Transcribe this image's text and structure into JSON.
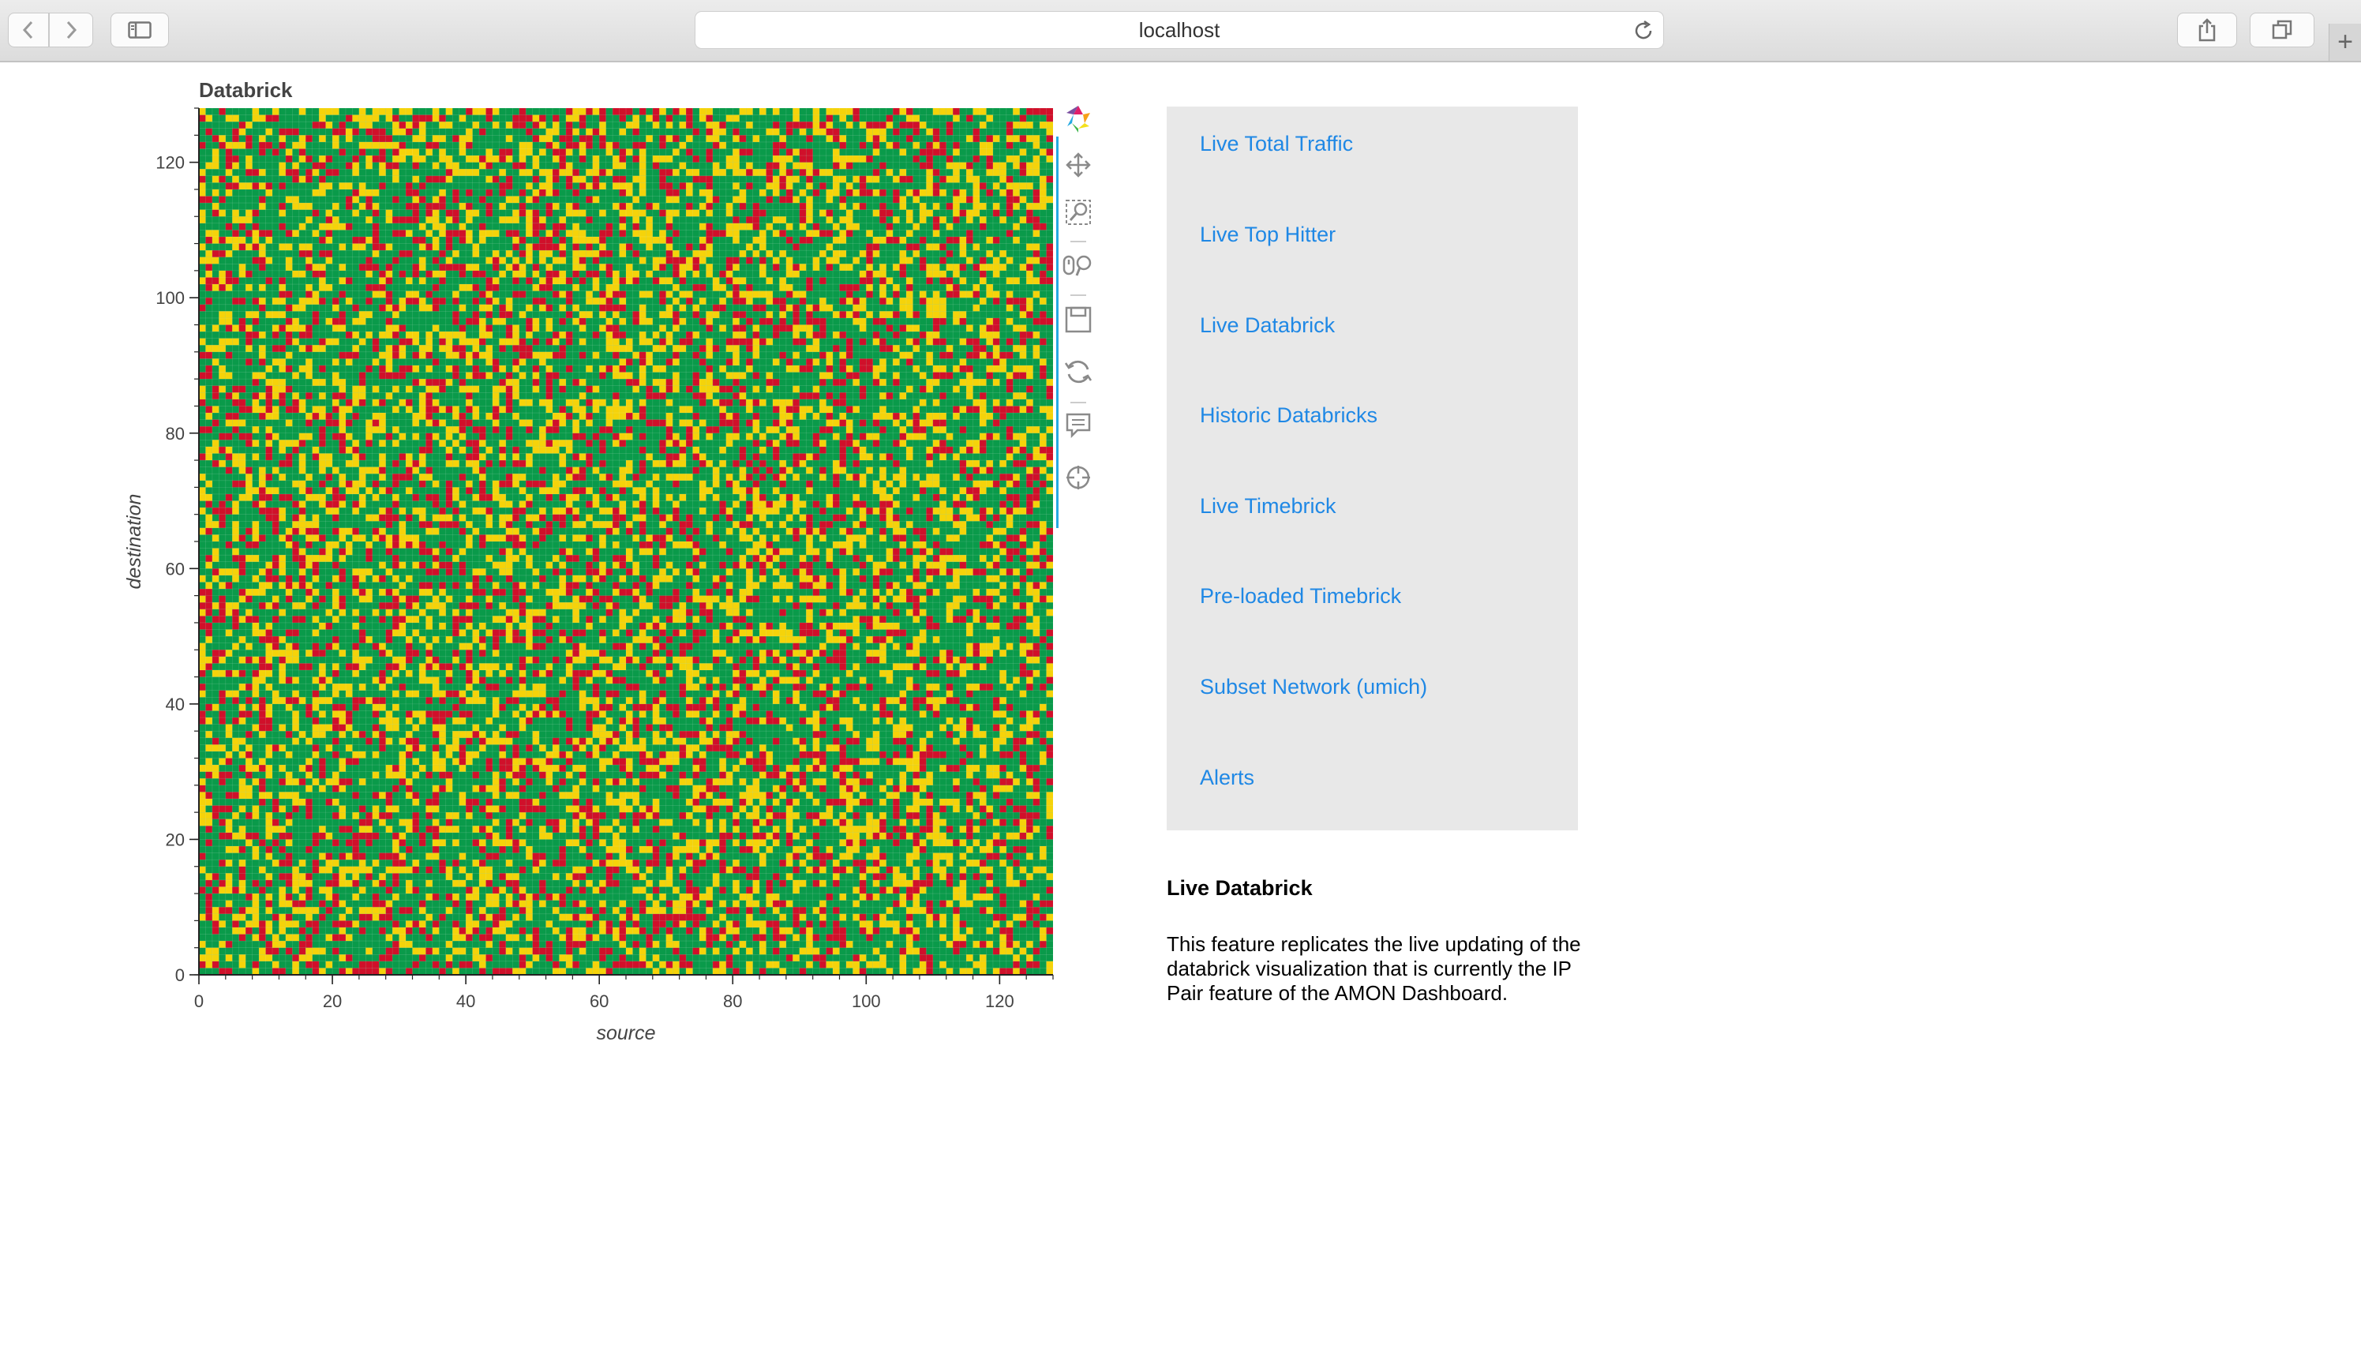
{
  "browser": {
    "url": "localhost",
    "new_tab": "+"
  },
  "chart_data": {
    "type": "heatmap",
    "title": "Databrick",
    "xlabel": "source",
    "ylabel": "destination",
    "xlim": [
      0,
      128
    ],
    "ylim": [
      0,
      128
    ],
    "x_ticks": [
      0,
      20,
      40,
      60,
      80,
      100,
      120
    ],
    "y_ticks": [
      0,
      20,
      40,
      60,
      80,
      100,
      120
    ],
    "grid_size": 128,
    "levels": [
      "green",
      "yellow",
      "red"
    ],
    "colors": {
      "green": "#0a9a4a",
      "yellow": "#f5d30a",
      "red": "#d0102a"
    },
    "level_weights": [
      0.55,
      0.25,
      0.2
    ]
  },
  "toolbar": {
    "tools": [
      {
        "name": "bokeh-logo-icon"
      },
      {
        "name": "pan-tool-icon"
      },
      {
        "name": "box-zoom-tool-icon"
      },
      {
        "name": "wheel-zoom-tool-icon"
      },
      {
        "name": "save-tool-icon"
      },
      {
        "name": "reset-tool-icon"
      },
      {
        "name": "hover-tool-icon"
      },
      {
        "name": "crosshair-tool-icon"
      }
    ]
  },
  "nav": {
    "items": [
      {
        "label": "Live Total Traffic"
      },
      {
        "label": "Live Top Hitter"
      },
      {
        "label": "Live Databrick"
      },
      {
        "label": "Historic Databricks"
      },
      {
        "label": "Live Timebrick"
      },
      {
        "label": "Pre-loaded Timebrick"
      },
      {
        "label": "Subset Network (umich)"
      },
      {
        "label": "Alerts"
      }
    ],
    "link_color": "#1f88e5"
  },
  "description": {
    "title": "Live Databrick",
    "text": "This feature replicates the live updating of the databrick visualization that is currently the IP Pair feature of the AMON Dashboard."
  }
}
